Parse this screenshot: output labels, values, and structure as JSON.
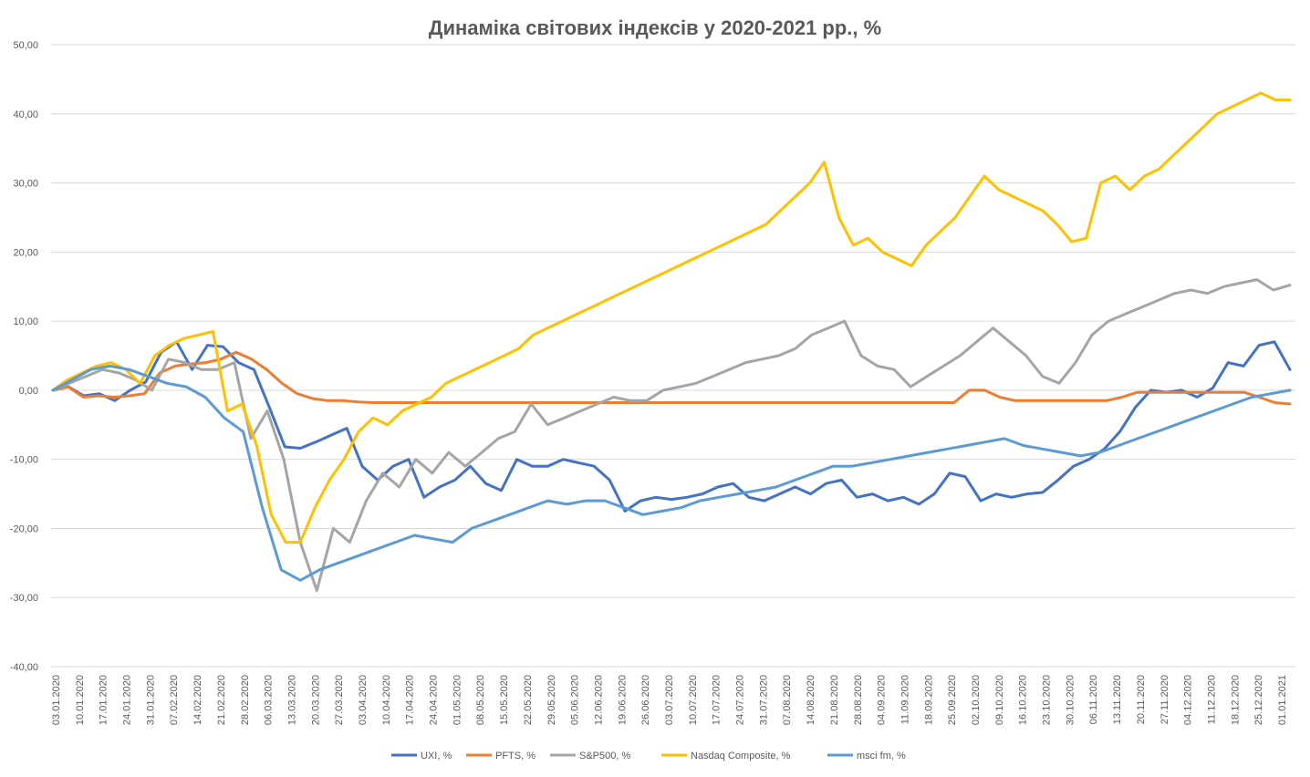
{
  "chart_data": {
    "type": "line",
    "title": "Динаміка світових індексів у 2020-2021 рр., %",
    "xlabel": "",
    "ylabel": "",
    "ylim": [
      -40,
      50
    ],
    "yticks": [
      50,
      40,
      30,
      20,
      10,
      0,
      -10,
      -20,
      -30,
      -40
    ],
    "ytick_labels": [
      "50,00",
      "40,00",
      "30,00",
      "20,00",
      "10,00",
      "0,00",
      "-10,00",
      "-20,00",
      "-30,00",
      "-40,00"
    ],
    "grid": true,
    "legend_position": "bottom",
    "x_tick_labels": [
      "03.01.2020",
      "10.01.2020",
      "17.01.2020",
      "24.01.2020",
      "31.01.2020",
      "07.02.2020",
      "14.02.2020",
      "21.02.2020",
      "28.02.2020",
      "06.03.2020",
      "13.03.2020",
      "20.03.2020",
      "27.03.2020",
      "03.04.2020",
      "10.04.2020",
      "17.04.2020",
      "24.04.2020",
      "01.05.2020",
      "08.05.2020",
      "15.05.2020",
      "22.05.2020",
      "29.05.2020",
      "05.06.2020",
      "12.06.2020",
      "19.06.2020",
      "26.06.2020",
      "03.07.2020",
      "10.07.2020",
      "17.07.2020",
      "24.07.2020",
      "31.07.2020",
      "07.08.2020",
      "14.08.2020",
      "21.08.2020",
      "28.08.2020",
      "04.09.2020",
      "11.09.2020",
      "18.09.2020",
      "25.09.2020",
      "02.10.2020",
      "09.10.2020",
      "16.10.2020",
      "23.10.2020",
      "30.10.2020",
      "06.11.2020",
      "13.11.2020",
      "20.11.2020",
      "27.11.2020",
      "04.12.2020",
      "11.12.2020",
      "18.12.2020",
      "25.12.2020",
      "01.01.2021"
    ],
    "series": [
      {
        "name": "UXI, %",
        "color": "#4472C4",
        "values": [
          0,
          0.5,
          -0.8,
          -0.5,
          -1.5,
          0,
          1.2,
          5.5,
          7,
          3,
          6.5,
          6.3,
          4,
          3,
          -2.5,
          -8.2,
          -8.4,
          -7.5,
          -6.5,
          -5.5,
          -11,
          -13,
          -11,
          -10,
          -15.5,
          -14,
          -13,
          -11,
          -13.5,
          -14.5,
          -10,
          -11,
          -11,
          -10,
          -10.5,
          -11,
          -13,
          -17.5,
          -16,
          -15.5,
          -15.8,
          -15.5,
          -15,
          -14,
          -13.5,
          -15.5,
          -16,
          -15,
          -14,
          -15,
          -13.5,
          -13,
          -15.5,
          -15,
          -16,
          -15.5,
          -16.5,
          -15,
          -12,
          -12.5,
          -16,
          -15,
          -15.5,
          -15,
          -14.8,
          -13,
          -11,
          -10,
          -8.5,
          -6,
          -2.5,
          0,
          -0.3,
          0,
          -1,
          0.3,
          4,
          3.5,
          6.5,
          7,
          3
        ]
      },
      {
        "name": "PFTS, %",
        "color": "#ED7D31",
        "values": [
          0,
          0.5,
          -1,
          -0.8,
          -1,
          -0.8,
          -0.5,
          2.5,
          3.5,
          3.8,
          4,
          4.5,
          5.5,
          4.5,
          3,
          1,
          -0.5,
          -1.2,
          -1.5,
          -1.5,
          -1.7,
          -1.8,
          -1.8,
          -1.8,
          -1.8,
          -1.8,
          -1.8,
          -1.8,
          -1.8,
          -1.8,
          -1.8,
          -1.8,
          -1.8,
          -1.8,
          -1.8,
          -1.8,
          -1.8,
          -1.8,
          -1.8,
          -1.8,
          -1.8,
          -1.8,
          -1.8,
          -1.8,
          -1.8,
          -1.8,
          -1.8,
          -1.8,
          -1.8,
          -1.8,
          -1.8,
          -1.8,
          -1.8,
          -1.8,
          -1.8,
          -1.8,
          -1.8,
          -1.8,
          -1.8,
          -1.8,
          0,
          0,
          -1,
          -1.5,
          -1.5,
          -1.5,
          -1.5,
          -1.5,
          -1.5,
          -1.5,
          -1,
          -0.3,
          -0.3,
          -0.3,
          -0.3,
          -0.3,
          -0.3,
          -0.3,
          -0.3,
          -1,
          -1.8,
          -2
        ]
      },
      {
        "name": "S&P500, %",
        "color": "#A5A5A5",
        "values": [
          0,
          1,
          2,
          3,
          2.5,
          1.5,
          0,
          4.5,
          4,
          3,
          3,
          4,
          -7,
          -3,
          -10,
          -22,
          -29,
          -20,
          -22,
          -16,
          -12,
          -14,
          -10,
          -12,
          -9,
          -11,
          -9,
          -7,
          -6,
          -2,
          -5,
          -4,
          -3,
          -2,
          -1,
          -1.5,
          -1.5,
          0,
          0.5,
          1,
          2,
          3,
          4,
          4.5,
          5,
          6,
          8,
          9,
          10,
          5,
          3.5,
          3,
          0.5,
          2,
          3.5,
          5,
          7,
          9,
          7,
          5,
          2,
          1,
          4,
          8,
          10,
          11,
          12,
          13,
          14,
          14.5,
          14,
          15,
          15.5,
          16,
          14.5,
          15.2
        ]
      },
      {
        "name": "Nasdaq Composite, %",
        "color": "#FFC000",
        "values": [
          0,
          1.5,
          2.5,
          3.5,
          4,
          3,
          1,
          5,
          6.5,
          7.5,
          8,
          8.5,
          -3,
          -2,
          -8,
          -18,
          -22,
          -22,
          -17,
          -13,
          -10,
          -6,
          -4,
          -5,
          -3,
          -2,
          -1,
          1,
          2,
          3,
          4,
          5,
          6,
          8,
          9,
          10,
          11,
          12,
          13,
          14,
          15,
          16,
          17,
          18,
          19,
          20,
          21,
          22,
          23,
          24,
          26,
          28,
          30,
          33,
          25,
          21,
          22,
          20,
          19,
          18,
          21,
          23,
          25,
          28,
          31,
          29,
          28,
          27,
          26,
          24,
          21.5,
          22,
          30,
          31,
          29,
          31,
          32,
          34,
          36,
          38,
          40,
          41,
          42,
          43,
          42,
          42
        ]
      },
      {
        "name": "msci fm, %",
        "color": "#5B9BD5",
        "values": [
          0,
          1.5,
          3,
          3.5,
          3,
          2,
          1,
          0.5,
          -1,
          -4,
          -6,
          -17,
          -26,
          -27.5,
          -26,
          -25,
          -24,
          -23,
          -22,
          -21,
          -21.5,
          -22,
          -20,
          -19,
          -18,
          -17,
          -16,
          -16.5,
          -16,
          -16,
          -17,
          -18,
          -17.5,
          -17,
          -16,
          -15.5,
          -15,
          -14.5,
          -14,
          -13,
          -12,
          -11,
          -11,
          -10.5,
          -10,
          -9.5,
          -9,
          -8.5,
          -8,
          -7.5,
          -7,
          -8,
          -8.5,
          -9,
          -9.5,
          -9,
          -8,
          -7,
          -6,
          -5,
          -4,
          -3,
          -2,
          -1,
          -0.5,
          0
        ]
      }
    ]
  }
}
